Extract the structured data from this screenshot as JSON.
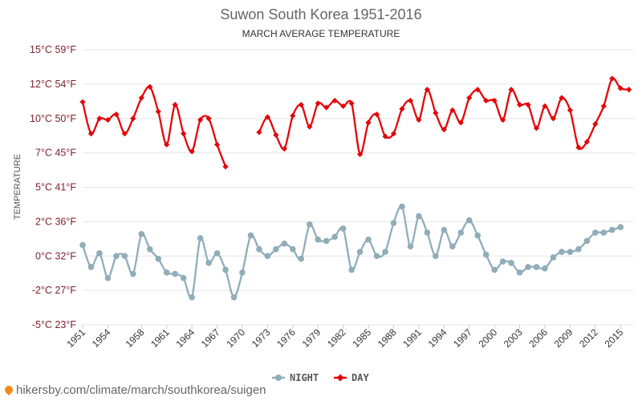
{
  "chart_data": {
    "type": "line",
    "title": "Suwon South Korea 1951-2016",
    "subtitle": "MARCH AVERAGE TEMPERATURE",
    "ylabel": "TEMPERATURE",
    "ylim": [
      -5,
      15
    ],
    "ytick_values": [
      -5,
      -2.5,
      0,
      2.5,
      5,
      7.5,
      10,
      12.5,
      15
    ],
    "yticks": [
      "-5°C 23°F",
      "-2°C 27°F",
      "0°C 32°F",
      "2°C 36°F",
      "5°C 41°F",
      "7°C 45°F",
      "10°C 50°F",
      "12°C 54°F",
      "15°C 59°F"
    ],
    "xlim": [
      1951,
      2016.6
    ],
    "xticks": [
      1951,
      1954,
      1958,
      1961,
      1964,
      1967,
      1970,
      1973,
      1976,
      1979,
      1982,
      1985,
      1988,
      1991,
      1994,
      1997,
      2000,
      2003,
      2006,
      2009,
      2012,
      2015
    ],
    "grid": true,
    "legend_position": "bottom",
    "x": [
      1951,
      1952,
      1953,
      1954,
      1955,
      1956,
      1957,
      1958,
      1959,
      1960,
      1961,
      1962,
      1963,
      1964,
      1965,
      1966,
      1967,
      1968,
      1969,
      1970,
      1971,
      1972,
      1973,
      1974,
      1975,
      1976,
      1977,
      1978,
      1979,
      1980,
      1981,
      1982,
      1983,
      1984,
      1985,
      1986,
      1987,
      1988,
      1989,
      1990,
      1991,
      1992,
      1993,
      1994,
      1995,
      1996,
      1997,
      1998,
      1999,
      2000,
      2001,
      2002,
      2003,
      2004,
      2005,
      2006,
      2007,
      2008,
      2009,
      2010,
      2011,
      2012,
      2013,
      2014,
      2015,
      2016
    ],
    "series": [
      {
        "name": "NIGHT",
        "color": "#90adb9",
        "marker": "circle",
        "values": [
          0.8,
          -0.8,
          0.2,
          -1.6,
          0.0,
          0.0,
          -1.3,
          1.6,
          0.5,
          -0.2,
          -1.2,
          -1.3,
          -1.6,
          -3.0,
          1.3,
          -0.5,
          0.2,
          -1.0,
          -3.0,
          -1.2,
          1.5,
          0.5,
          0.0,
          0.5,
          0.9,
          0.5,
          -0.2,
          2.3,
          1.2,
          1.1,
          1.4,
          2.0,
          -1.0,
          0.3,
          1.2,
          0.0,
          0.3,
          2.4,
          3.6,
          0.7,
          2.9,
          1.7,
          0.0,
          1.9,
          0.7,
          1.7,
          2.6,
          1.5,
          0.1,
          -1.0,
          -0.4,
          -0.5,
          -1.2,
          -0.8,
          -0.8,
          -0.9,
          -0.1,
          0.3,
          0.3,
          0.5,
          1.1,
          1.7,
          1.7,
          1.9,
          2.1,
          null
        ]
      },
      {
        "name": "DAY",
        "color": "#e3060b",
        "marker": "diamond",
        "values": [
          11.2,
          8.9,
          10.0,
          9.9,
          10.3,
          8.9,
          10.0,
          11.5,
          12.3,
          10.5,
          8.1,
          11.0,
          8.9,
          7.6,
          9.9,
          10.0,
          8.1,
          6.5,
          null,
          null,
          null,
          9.0,
          10.1,
          8.8,
          7.8,
          10.2,
          11.0,
          9.4,
          11.1,
          10.8,
          11.3,
          10.9,
          11.1,
          7.4,
          9.7,
          10.3,
          8.7,
          8.9,
          10.7,
          11.3,
          9.9,
          12.1,
          10.4,
          9.2,
          10.6,
          9.7,
          11.5,
          12.1,
          11.3,
          11.3,
          9.9,
          12.1,
          11.0,
          11.0,
          9.3,
          10.9,
          10.0,
          11.5,
          10.6,
          7.9,
          8.3,
          9.6,
          10.9,
          12.9,
          12.2,
          12.1
        ]
      }
    ]
  },
  "footer": {
    "icon": "location-pin-icon",
    "text": "hikersby.com/climate/march/southkorea/suigen"
  }
}
